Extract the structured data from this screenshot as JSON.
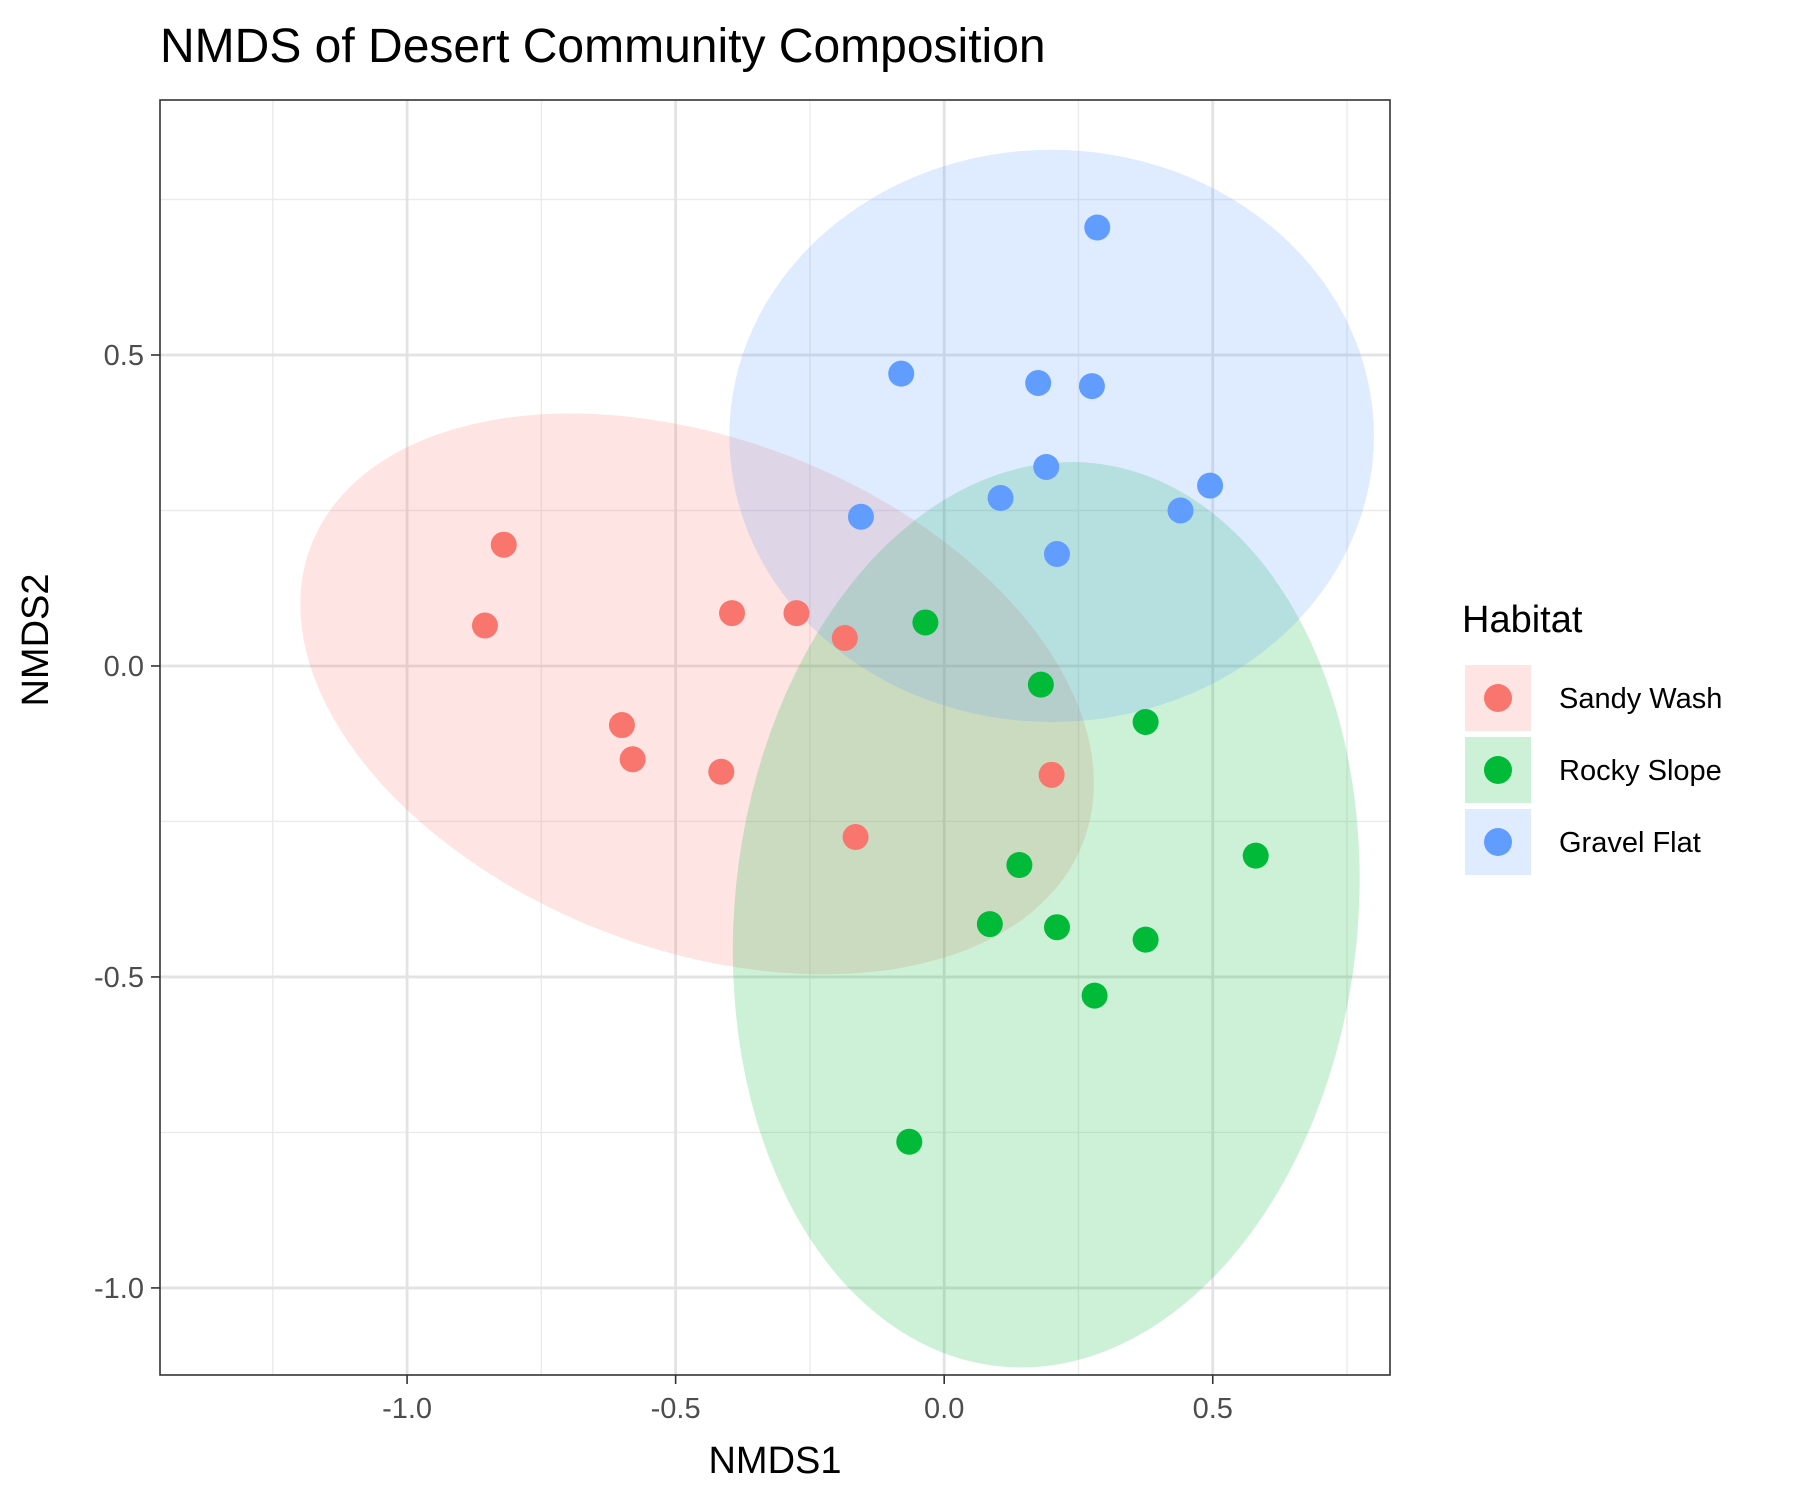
{
  "chart_data": {
    "type": "scatter",
    "title": "NMDS of Desert Community Composition",
    "xlabel": "NMDS1",
    "ylabel": "NMDS2",
    "xlim": [
      -1.46,
      0.83
    ],
    "ylim": [
      -1.14,
      0.91
    ],
    "x_ticks": [
      -1.0,
      -0.5,
      0.0,
      0.5
    ],
    "y_ticks": [
      -1.0,
      -0.5,
      0.0,
      0.5
    ],
    "x_tick_labels": [
      "-1.0",
      "-0.5",
      "0.0",
      "0.5"
    ],
    "y_tick_labels": [
      "-1.0",
      "-0.5",
      "0.0",
      "0.5"
    ],
    "grid": true,
    "legend": {
      "title": "Habitat",
      "position": "right"
    },
    "ellipses": true,
    "series": [
      {
        "name": "Sandy Wash",
        "color": "#F8766D",
        "fill": "#FFE0DE",
        "points": [
          [
            -0.82,
            0.195
          ],
          [
            -0.855,
            0.065
          ],
          [
            -0.395,
            0.085
          ],
          [
            -0.275,
            0.085
          ],
          [
            -0.185,
            0.045
          ],
          [
            -0.6,
            -0.095
          ],
          [
            -0.58,
            -0.15
          ],
          [
            -0.415,
            -0.17
          ],
          [
            0.2,
            -0.175
          ],
          [
            -0.165,
            -0.275
          ]
        ],
        "ellipse": {
          "cx": -0.46,
          "cy": -0.045,
          "rx": 0.77,
          "ry": 0.41,
          "angle_deg": -21
        }
      },
      {
        "name": "Rocky Slope",
        "color": "#00BA38",
        "fill": "#CCF0D7",
        "points": [
          [
            -0.035,
            0.07
          ],
          [
            0.18,
            -0.03
          ],
          [
            0.375,
            -0.09
          ],
          [
            0.58,
            -0.305
          ],
          [
            0.14,
            -0.32
          ],
          [
            0.085,
            -0.415
          ],
          [
            0.21,
            -0.42
          ],
          [
            0.375,
            -0.44
          ],
          [
            0.28,
            -0.53
          ],
          [
            -0.065,
            -0.765
          ]
        ],
        "ellipse": {
          "cx": 0.19,
          "cy": -0.4,
          "rx": 0.58,
          "ry": 0.73,
          "angle_deg": -6
        }
      },
      {
        "name": "Gravel Flat",
        "color": "#619CFF",
        "fill": "#DEEBFF",
        "points": [
          [
            0.285,
            0.705
          ],
          [
            -0.08,
            0.47
          ],
          [
            0.175,
            0.455
          ],
          [
            0.275,
            0.45
          ],
          [
            0.19,
            0.32
          ],
          [
            0.105,
            0.27
          ],
          [
            -0.155,
            0.24
          ],
          [
            0.44,
            0.25
          ],
          [
            0.495,
            0.29
          ],
          [
            0.21,
            0.18
          ]
        ],
        "ellipse": {
          "cx": 0.2,
          "cy": 0.37,
          "rx": 0.6,
          "ry": 0.46,
          "angle_deg": 0
        }
      }
    ]
  }
}
